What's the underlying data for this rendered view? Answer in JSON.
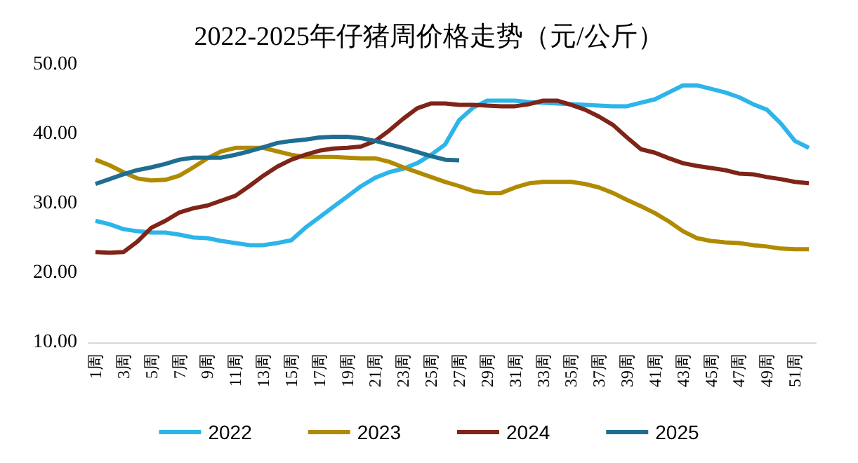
{
  "chart_data": {
    "type": "line",
    "title": "2022-2025年仔猪周价格走势（元/公斤）",
    "categories": [
      "1周",
      null,
      "3周",
      null,
      "5周",
      null,
      "7周",
      null,
      "9周",
      null,
      "11周",
      null,
      "13周",
      null,
      "15周",
      null,
      "17周",
      null,
      "19周",
      null,
      "21周",
      null,
      "23周",
      null,
      "25周",
      null,
      "27周",
      null,
      "29周",
      null,
      "31周",
      null,
      "33周",
      null,
      "35周",
      null,
      "37周",
      null,
      "39周",
      null,
      "41周",
      null,
      "43周",
      null,
      "45周",
      null,
      "47周",
      null,
      "49周",
      null,
      "51周",
      null
    ],
    "series": [
      {
        "name": "2022",
        "color": "#2db5ea",
        "values": [
          27.5,
          27,
          26.3,
          26,
          25.8,
          25.8,
          25.5,
          25.1,
          25,
          24.6,
          24.3,
          24,
          24,
          24.3,
          24.7,
          26.5,
          28,
          29.5,
          31,
          32.5,
          33.7,
          34.5,
          35,
          35.8,
          37,
          38.5,
          42,
          43.8,
          44.8,
          44.8,
          44.8,
          44.6,
          44.5,
          44.4,
          44.3,
          44.2,
          44.1,
          44,
          44,
          44.5,
          45,
          46,
          47,
          47,
          46.5,
          46,
          45.3,
          44.3,
          43.5,
          41.5,
          39,
          38
        ]
      },
      {
        "name": "2023",
        "color": "#b08a00",
        "values": [
          36.3,
          35.5,
          34.5,
          33.6,
          33.3,
          33.4,
          34,
          35.2,
          36.5,
          37.5,
          38,
          38,
          38,
          37.5,
          37,
          36.7,
          36.7,
          36.7,
          36.6,
          36.5,
          36.5,
          36,
          35.2,
          34.5,
          33.8,
          33.1,
          32.5,
          31.8,
          31.5,
          31.5,
          32.3,
          32.9,
          33.1,
          33.1,
          33.1,
          32.8,
          32.3,
          31.5,
          30.5,
          29.6,
          28.6,
          27.4,
          26,
          25,
          24.6,
          24.4,
          24.3,
          24,
          23.8,
          23.5,
          23.4,
          23.4
        ]
      },
      {
        "name": "2024",
        "color": "#7f2418",
        "values": [
          23,
          22.9,
          23,
          24.5,
          26.5,
          27.5,
          28.7,
          29.3,
          29.7,
          30.4,
          31.1,
          32.5,
          34,
          35.3,
          36.3,
          37,
          37.6,
          37.9,
          38,
          38.2,
          39,
          40.5,
          42.2,
          43.7,
          44.4,
          44.4,
          44.2,
          44.2,
          44.1,
          44,
          44,
          44.3,
          44.8,
          44.8,
          44.2,
          43.5,
          42.5,
          41.3,
          39.5,
          37.8,
          37.3,
          36.5,
          35.8,
          35.4,
          35.1,
          34.8,
          34.3,
          34.2,
          33.8,
          33.5,
          33.1,
          32.9
        ]
      },
      {
        "name": "2025",
        "color": "#1f6e91",
        "values": [
          32.8,
          33.5,
          34.2,
          34.8,
          35.2,
          35.7,
          36.3,
          36.6,
          36.6,
          36.6,
          37,
          37.5,
          38.1,
          38.7,
          39,
          39.2,
          39.5,
          39.6,
          39.6,
          39.4,
          39,
          38.5,
          38,
          37.4,
          36.8,
          36.3,
          36.2,
          null,
          null,
          null,
          null,
          null,
          null,
          null,
          null,
          null,
          null,
          null,
          null,
          null,
          null,
          null,
          null,
          null,
          null,
          null,
          null,
          null,
          null,
          null,
          null,
          null
        ]
      }
    ],
    "ylim": [
      10,
      50
    ],
    "yticks": [
      {
        "value": 10,
        "label": "10.00"
      },
      {
        "value": 20,
        "label": "20.00"
      },
      {
        "value": 30,
        "label": "30.00"
      },
      {
        "value": 40,
        "label": "40.00"
      },
      {
        "value": 50,
        "label": "50.00"
      }
    ],
    "grid": false,
    "legend": "bottom",
    "marker": "none",
    "line_style": "solid"
  }
}
